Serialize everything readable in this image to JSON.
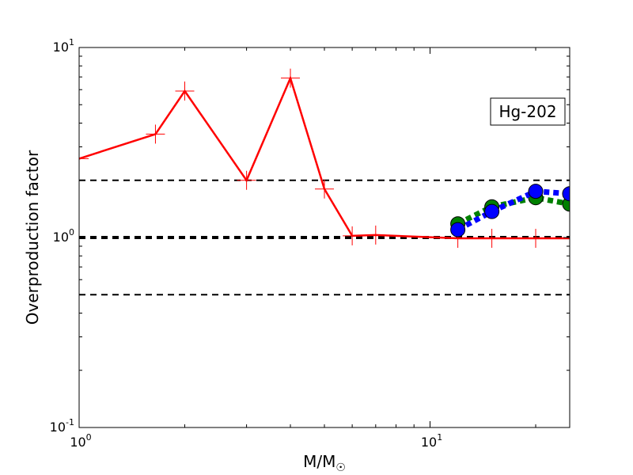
{
  "chart_data": {
    "type": "line",
    "xscale": "log",
    "yscale": "log",
    "xlim": [
      1,
      25
    ],
    "ylim": [
      0.1,
      10
    ],
    "xlabel": "M/M",
    "xlabel_sub": "☉",
    "ylabel": "Overproduction factor",
    "annotation": "Hg-202",
    "annotation_position": "top-right",
    "x_ticks": [
      {
        "value": 1,
        "base": "10",
        "exp": "0"
      },
      {
        "value": 10,
        "base": "10",
        "exp": "1"
      }
    ],
    "y_ticks": [
      {
        "value": 0.1,
        "base": "10",
        "exp": "-1"
      },
      {
        "value": 1,
        "base": "10",
        "exp": "0"
      },
      {
        "value": 10,
        "base": "10",
        "exp": "1"
      }
    ],
    "reference_lines": [
      {
        "y": 2.0,
        "color": "#000000",
        "width": 2,
        "dash": "8,6"
      },
      {
        "y": 1.0,
        "color": "#000000",
        "width": 4,
        "dash": "8,6"
      },
      {
        "y": 0.5,
        "color": "#000000",
        "width": 2,
        "dash": "8,6"
      }
    ],
    "series": [
      {
        "color": "#ff0000",
        "marker": "plus",
        "line": "solid",
        "points": [
          [
            1.0,
            2.6
          ],
          [
            1.65,
            3.5
          ],
          [
            2.0,
            5.9
          ],
          [
            3.0,
            2.0
          ],
          [
            4.0,
            6.9
          ],
          [
            5.0,
            1.8
          ],
          [
            6.0,
            1.02
          ],
          [
            7.0,
            1.03
          ],
          [
            12.0,
            0.99
          ],
          [
            15.0,
            0.99
          ],
          [
            20.0,
            0.99
          ],
          [
            25.0,
            0.99
          ]
        ]
      },
      {
        "color": "#008000",
        "marker": "circle",
        "line": "dotted",
        "points": [
          [
            12.0,
            1.18
          ],
          [
            15.0,
            1.45
          ],
          [
            20.0,
            1.62
          ],
          [
            25.0,
            1.5
          ]
        ]
      },
      {
        "color": "#0000ff",
        "marker": "circle",
        "line": "dotted",
        "points": [
          [
            12.0,
            1.1
          ],
          [
            15.0,
            1.37
          ],
          [
            20.0,
            1.75
          ],
          [
            25.0,
            1.7
          ]
        ]
      }
    ]
  }
}
